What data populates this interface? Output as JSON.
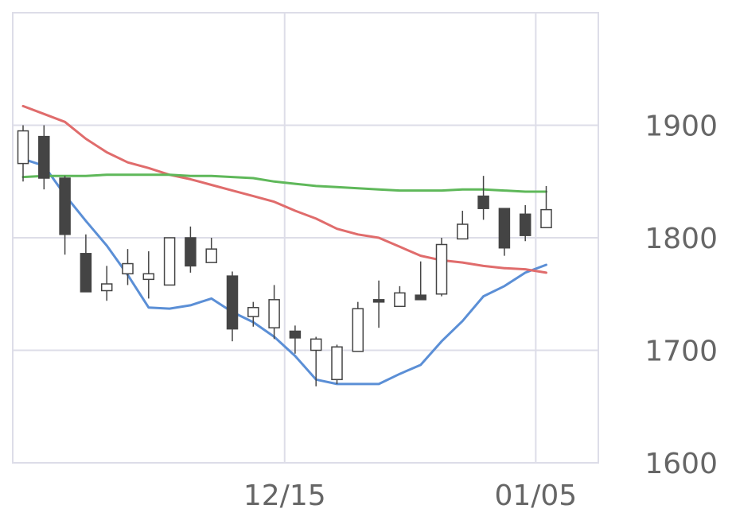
{
  "chart_data": {
    "type": "candlestick",
    "title": "",
    "xlabel": "",
    "ylabel": "",
    "ylim": [
      1600,
      2000
    ],
    "grid": true,
    "y_axis_position": "right",
    "y_ticks": [
      {
        "value": 1900,
        "label": "1900"
      },
      {
        "value": 1800,
        "label": "1800"
      },
      {
        "value": 1700,
        "label": "1700"
      },
      {
        "value": 1600,
        "label": "1600"
      }
    ],
    "x_ticks": [
      {
        "index": 12.5,
        "label": "12/15"
      },
      {
        "index": 24.5,
        "label": "01/05"
      }
    ],
    "colors": {
      "up_candle": "#ffffff",
      "down_candle": "#444444",
      "candle_outline": "#444444",
      "grid": "#dddde8",
      "ma_short": "#5b8fd6",
      "ma_mid": "#e06c6c",
      "ma_long": "#5fb85a"
    },
    "candles": [
      {
        "open": 1866,
        "high": 1900,
        "low": 1850,
        "close": 1895
      },
      {
        "open": 1890,
        "high": 1900,
        "low": 1843,
        "close": 1853
      },
      {
        "open": 1853,
        "high": 1855,
        "low": 1785,
        "close": 1803
      },
      {
        "open": 1786,
        "high": 1803,
        "low": 1752,
        "close": 1752
      },
      {
        "open": 1753,
        "high": 1775,
        "low": 1744,
        "close": 1759
      },
      {
        "open": 1768,
        "high": 1790,
        "low": 1758,
        "close": 1777
      },
      {
        "open": 1763,
        "high": 1788,
        "low": 1746,
        "close": 1768
      },
      {
        "open": 1758,
        "high": 1800,
        "low": 1758,
        "close": 1800
      },
      {
        "open": 1800,
        "high": 1810,
        "low": 1769,
        "close": 1775
      },
      {
        "open": 1778,
        "high": 1800,
        "low": 1778,
        "close": 1790
      },
      {
        "open": 1766,
        "high": 1770,
        "low": 1708,
        "close": 1719
      },
      {
        "open": 1730,
        "high": 1743,
        "low": 1721,
        "close": 1738
      },
      {
        "open": 1720,
        "high": 1758,
        "low": 1710,
        "close": 1745
      },
      {
        "open": 1717,
        "high": 1722,
        "low": 1697,
        "close": 1711
      },
      {
        "open": 1700,
        "high": 1712,
        "low": 1668,
        "close": 1710
      },
      {
        "open": 1674,
        "high": 1705,
        "low": 1670,
        "close": 1703
      },
      {
        "open": 1699,
        "high": 1743,
        "low": 1699,
        "close": 1737
      },
      {
        "open": 1745,
        "high": 1762,
        "low": 1720,
        "close": 1744
      },
      {
        "open": 1739,
        "high": 1757,
        "low": 1739,
        "close": 1751
      },
      {
        "open": 1749,
        "high": 1779,
        "low": 1745,
        "close": 1745
      },
      {
        "open": 1750,
        "high": 1800,
        "low": 1748,
        "close": 1794
      },
      {
        "open": 1799,
        "high": 1824,
        "low": 1799,
        "close": 1812
      },
      {
        "open": 1837,
        "high": 1855,
        "low": 1816,
        "close": 1826
      },
      {
        "open": 1826,
        "high": 1826,
        "low": 1784,
        "close": 1791
      },
      {
        "open": 1821,
        "high": 1829,
        "low": 1797,
        "close": 1802
      },
      {
        "open": 1809,
        "high": 1846,
        "low": 1809,
        "close": 1825
      }
    ],
    "series": [
      {
        "color_key": "ma_short",
        "points": [
          [
            0,
            1870
          ],
          [
            1,
            1864
          ],
          [
            2,
            1838
          ],
          [
            3,
            1815
          ],
          [
            4,
            1793
          ],
          [
            5,
            1767
          ],
          [
            6,
            1738
          ],
          [
            7,
            1737
          ],
          [
            8,
            1740
          ],
          [
            9,
            1746
          ],
          [
            10,
            1734
          ],
          [
            11,
            1725
          ],
          [
            12,
            1712
          ],
          [
            13,
            1695
          ],
          [
            14,
            1674
          ],
          [
            15,
            1670
          ],
          [
            16,
            1670
          ],
          [
            17,
            1670
          ],
          [
            18,
            1679
          ],
          [
            19,
            1687
          ],
          [
            20,
            1708
          ],
          [
            21,
            1726
          ],
          [
            22,
            1748
          ],
          [
            23,
            1757
          ],
          [
            24,
            1769
          ],
          [
            25,
            1776
          ]
        ]
      },
      {
        "color_key": "ma_mid",
        "points": [
          [
            0,
            1917
          ],
          [
            1,
            1910
          ],
          [
            2,
            1903
          ],
          [
            3,
            1888
          ],
          [
            4,
            1876
          ],
          [
            5,
            1867
          ],
          [
            6,
            1862
          ],
          [
            7,
            1856
          ],
          [
            8,
            1852
          ],
          [
            9,
            1847
          ],
          [
            10,
            1842
          ],
          [
            11,
            1837
          ],
          [
            12,
            1832
          ],
          [
            13,
            1824
          ],
          [
            14,
            1817
          ],
          [
            15,
            1808
          ],
          [
            16,
            1803
          ],
          [
            17,
            1800
          ],
          [
            18,
            1792
          ],
          [
            19,
            1784
          ],
          [
            20,
            1780
          ],
          [
            21,
            1778
          ],
          [
            22,
            1775
          ],
          [
            23,
            1773
          ],
          [
            24,
            1772
          ],
          [
            25,
            1769
          ]
        ]
      },
      {
        "color_key": "ma_long",
        "points": [
          [
            0,
            1854
          ],
          [
            1,
            1855
          ],
          [
            2,
            1855
          ],
          [
            3,
            1855
          ],
          [
            4,
            1856
          ],
          [
            5,
            1856
          ],
          [
            6,
            1856
          ],
          [
            7,
            1856
          ],
          [
            8,
            1855
          ],
          [
            9,
            1855
          ],
          [
            10,
            1854
          ],
          [
            11,
            1853
          ],
          [
            12,
            1850
          ],
          [
            13,
            1848
          ],
          [
            14,
            1846
          ],
          [
            15,
            1845
          ],
          [
            16,
            1844
          ],
          [
            17,
            1843
          ],
          [
            18,
            1842
          ],
          [
            19,
            1842
          ],
          [
            20,
            1842
          ],
          [
            21,
            1843
          ],
          [
            22,
            1843
          ],
          [
            23,
            1842
          ],
          [
            24,
            1841
          ],
          [
            25,
            1841
          ]
        ]
      }
    ]
  }
}
